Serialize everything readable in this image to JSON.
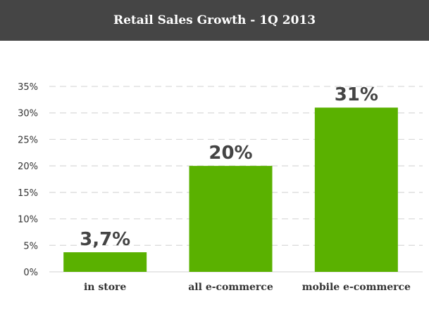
{
  "header": {
    "title": "Retail Sales Growth - 1Q 2013"
  },
  "colors": {
    "header_bg": "#454545",
    "bar": "#5ab100",
    "grid": "#d9d9d9"
  },
  "chart_data": {
    "type": "bar",
    "title": "Retail Sales Growth - 1Q 2013",
    "xlabel": "",
    "ylabel": "",
    "categories": [
      "in store",
      "all e-commerce",
      "mobile e-commerce"
    ],
    "values": [
      3.7,
      20,
      31
    ],
    "data_labels": [
      "3,7%",
      "20%",
      "31%"
    ],
    "ylim": [
      0,
      35
    ],
    "yticks": [
      0,
      5,
      10,
      15,
      20,
      25,
      30,
      35
    ],
    "ytick_labels": [
      "0%",
      "5%",
      "10%",
      "15%",
      "20%",
      "25%",
      "30%",
      "35%"
    ],
    "grid": true,
    "legend": "none"
  }
}
